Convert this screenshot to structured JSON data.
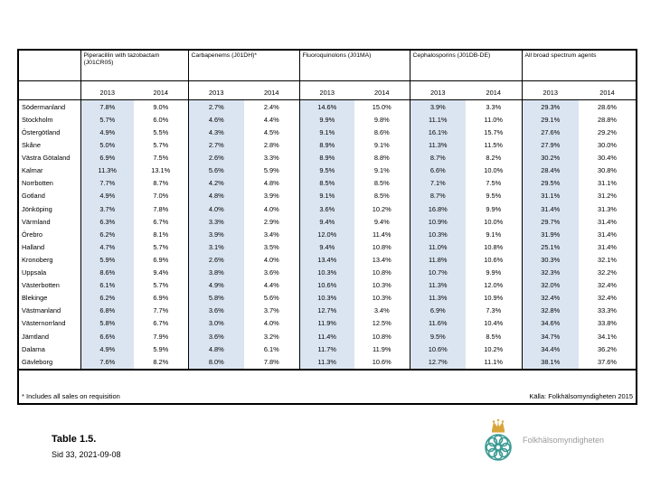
{
  "chart_data": {
    "type": "table",
    "title": "Table 1.5.",
    "column_groups": [
      "Piperacillin with tazobactam (J01CR05)",
      "Carbapenems (J01DH)*",
      "Fluoroquinolons (J01MA)",
      "Cephalosporins (J01DB-DE)",
      "All broad spectrum agents"
    ],
    "year_headers": [
      "2013",
      "2014"
    ],
    "rows": [
      {
        "region": "Södermanland",
        "values": [
          "7.8%",
          "9.0%",
          "2.7%",
          "2.4%",
          "14.6%",
          "15.0%",
          "3.9%",
          "3.3%",
          "29.3%",
          "28.6%"
        ]
      },
      {
        "region": "Stockholm",
        "values": [
          "5.7%",
          "6.0%",
          "4.6%",
          "4.4%",
          "9.9%",
          "9.8%",
          "11.1%",
          "11.0%",
          "29.1%",
          "28.8%"
        ]
      },
      {
        "region": "Östergötland",
        "values": [
          "4.9%",
          "5.5%",
          "4.3%",
          "4.5%",
          "9.1%",
          "8.6%",
          "16.1%",
          "15.7%",
          "27.6%",
          "29.2%"
        ]
      },
      {
        "region": "Skåne",
        "values": [
          "5.0%",
          "5.7%",
          "2.7%",
          "2.8%",
          "8.9%",
          "9.1%",
          "11.3%",
          "11.5%",
          "27.9%",
          "30.0%"
        ]
      },
      {
        "region": "Västra Götaland",
        "values": [
          "6.9%",
          "7.5%",
          "2.6%",
          "3.3%",
          "8.9%",
          "8.8%",
          "8.7%",
          "8.2%",
          "30.2%",
          "30.4%"
        ]
      },
      {
        "region": "Kalmar",
        "values": [
          "11.3%",
          "13.1%",
          "5.6%",
          "5.9%",
          "9.5%",
          "9.1%",
          "6.6%",
          "10.0%",
          "28.4%",
          "30.8%"
        ]
      },
      {
        "region": "Norrbotten",
        "values": [
          "7.7%",
          "8.7%",
          "4.2%",
          "4.8%",
          "8.5%",
          "8.5%",
          "7.1%",
          "7.5%",
          "29.5%",
          "31.1%"
        ]
      },
      {
        "region": "Gotland",
        "values": [
          "4.9%",
          "7.0%",
          "4.8%",
          "3.9%",
          "9.1%",
          "8.5%",
          "8.7%",
          "9.5%",
          "31.1%",
          "31.2%"
        ]
      },
      {
        "region": "Jönköping",
        "values": [
          "3.7%",
          "7.8%",
          "4.0%",
          "4.0%",
          "3.6%",
          "10.2%",
          "16.8%",
          "9.9%",
          "31.4%",
          "31.3%"
        ]
      },
      {
        "region": "Värmland",
        "values": [
          "6.3%",
          "6.7%",
          "3.3%",
          "2.9%",
          "9.4%",
          "9.4%",
          "10.9%",
          "10.0%",
          "29.7%",
          "31.4%"
        ]
      },
      {
        "region": "Örebro",
        "values": [
          "6.2%",
          "8.1%",
          "3.9%",
          "3.4%",
          "12.0%",
          "11.4%",
          "10.3%",
          "9.1%",
          "31.9%",
          "31.4%"
        ]
      },
      {
        "region": "Halland",
        "values": [
          "4.7%",
          "5.7%",
          "3.1%",
          "3.5%",
          "9.4%",
          "10.8%",
          "11.0%",
          "10.8%",
          "25.1%",
          "31.4%"
        ]
      },
      {
        "region": "Kronoberg",
        "values": [
          "5.9%",
          "6.9%",
          "2.6%",
          "4.0%",
          "13.4%",
          "13.4%",
          "11.8%",
          "10.6%",
          "30.3%",
          "32.1%"
        ]
      },
      {
        "region": "Uppsala",
        "values": [
          "8.6%",
          "9.4%",
          "3.8%",
          "3.6%",
          "10.3%",
          "10.8%",
          "10.7%",
          "9.9%",
          "32.3%",
          "32.2%"
        ]
      },
      {
        "region": "Västerbotten",
        "values": [
          "6.1%",
          "5.7%",
          "4.9%",
          "4.4%",
          "10.6%",
          "10.3%",
          "11.3%",
          "12.0%",
          "32.0%",
          "32.4%"
        ]
      },
      {
        "region": "Blekinge",
        "values": [
          "6.2%",
          "6.9%",
          "5.8%",
          "5.6%",
          "10.3%",
          "10.3%",
          "11.3%",
          "10.9%",
          "32.4%",
          "32.4%"
        ]
      },
      {
        "region": "Västmanland",
        "values": [
          "6.8%",
          "7.7%",
          "3.6%",
          "3.7%",
          "12.7%",
          "3.4%",
          "6.9%",
          "7.3%",
          "32.8%",
          "33.3%"
        ]
      },
      {
        "region": "Västernorrland",
        "values": [
          "5.8%",
          "6.7%",
          "3.0%",
          "4.0%",
          "11.9%",
          "12.5%",
          "11.6%",
          "10.4%",
          "34.6%",
          "33.8%"
        ]
      },
      {
        "region": "Jämtland",
        "values": [
          "6.6%",
          "7.9%",
          "3.6%",
          "3.2%",
          "11.4%",
          "10.8%",
          "9.5%",
          "8.5%",
          "34.7%",
          "34.1%"
        ]
      },
      {
        "region": "Dalarna",
        "values": [
          "4.9%",
          "5.9%",
          "4.8%",
          "6.1%",
          "11.7%",
          "11.9%",
          "10.6%",
          "10.2%",
          "34.4%",
          "36.2%"
        ]
      },
      {
        "region": "Gävleborg",
        "values": [
          "7.6%",
          "8.2%",
          "8.0%",
          "7.8%",
          "11.3%",
          "10.6%",
          "12.7%",
          "11.1%",
          "38.1%",
          "37.6%"
        ]
      }
    ],
    "footnote_left": "* Includes all sales on requisition",
    "footnote_right": "Källa: Folkhälsomyndigheten 2015"
  },
  "footer": {
    "caption": "Table 1.5.",
    "page_info": "Sid 33, 2021-09-08",
    "logo_text": "Folkhälsomyndigheten"
  },
  "colors": {
    "shade_2013": "#dbe5f1",
    "logo_teal": "#3d9b94",
    "logo_gold": "#d9a53a",
    "logo_text_gray": "#9b9b9b"
  }
}
